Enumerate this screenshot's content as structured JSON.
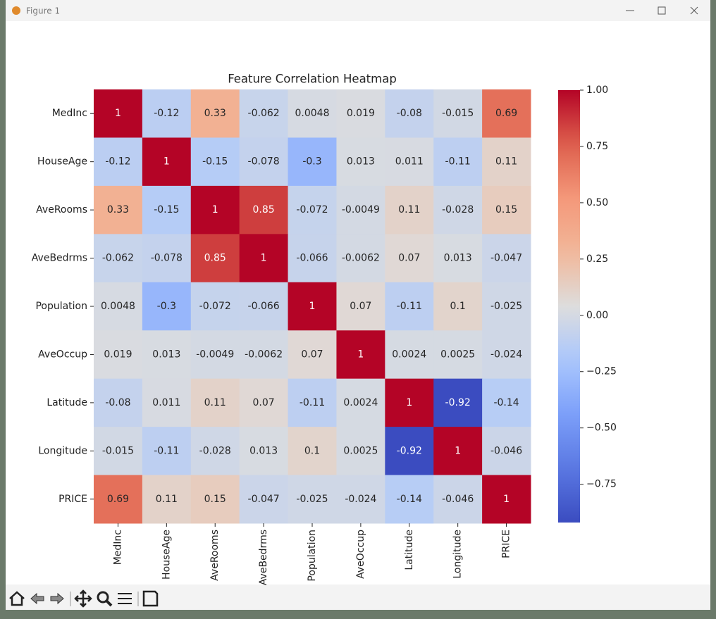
{
  "window": {
    "title": "Figure 1"
  },
  "chart_data": {
    "type": "heatmap",
    "title": "Feature Correlation Heatmap",
    "x_categories": [
      "MedInc",
      "HouseAge",
      "AveRooms",
      "AveBedrms",
      "Population",
      "AveOccup",
      "Latitude",
      "Longitude",
      "PRICE"
    ],
    "y_categories": [
      "MedInc",
      "HouseAge",
      "AveRooms",
      "AveBedrms",
      "Population",
      "AveOccup",
      "Latitude",
      "Longitude",
      "PRICE"
    ],
    "values": [
      [
        1,
        -0.12,
        0.33,
        -0.062,
        0.0048,
        0.019,
        -0.08,
        -0.015,
        0.69
      ],
      [
        -0.12,
        1,
        -0.15,
        -0.078,
        -0.3,
        0.013,
        0.011,
        -0.11,
        0.11
      ],
      [
        0.33,
        -0.15,
        1,
        0.85,
        -0.072,
        -0.0049,
        0.11,
        -0.028,
        0.15
      ],
      [
        -0.062,
        -0.078,
        0.85,
        1,
        -0.066,
        -0.0062,
        0.07,
        0.013,
        -0.047
      ],
      [
        0.0048,
        -0.3,
        -0.072,
        -0.066,
        1,
        0.07,
        -0.11,
        0.1,
        -0.025
      ],
      [
        0.019,
        0.013,
        -0.0049,
        -0.0062,
        0.07,
        1,
        0.0024,
        0.0025,
        -0.024
      ],
      [
        -0.08,
        0.011,
        0.11,
        0.07,
        -0.11,
        0.0024,
        1,
        -0.92,
        -0.14
      ],
      [
        -0.015,
        -0.11,
        -0.028,
        0.013,
        0.1,
        0.0025,
        -0.92,
        1,
        -0.046
      ],
      [
        0.69,
        0.11,
        0.15,
        -0.047,
        -0.025,
        -0.024,
        -0.14,
        -0.046,
        1
      ]
    ],
    "colormap": "coolwarm",
    "clim": [
      -0.92,
      1
    ],
    "colorbar_ticks": [
      {
        "value": 1,
        "label": "1.00"
      },
      {
        "value": 0.75,
        "label": "0.75"
      },
      {
        "value": 0.5,
        "label": "0.50"
      },
      {
        "value": 0.25,
        "label": "0.25"
      },
      {
        "value": 0,
        "label": "0.00"
      },
      {
        "value": -0.25,
        "label": "−0.25"
      },
      {
        "value": -0.5,
        "label": "−0.50"
      },
      {
        "value": -0.75,
        "label": "−0.75"
      }
    ]
  }
}
